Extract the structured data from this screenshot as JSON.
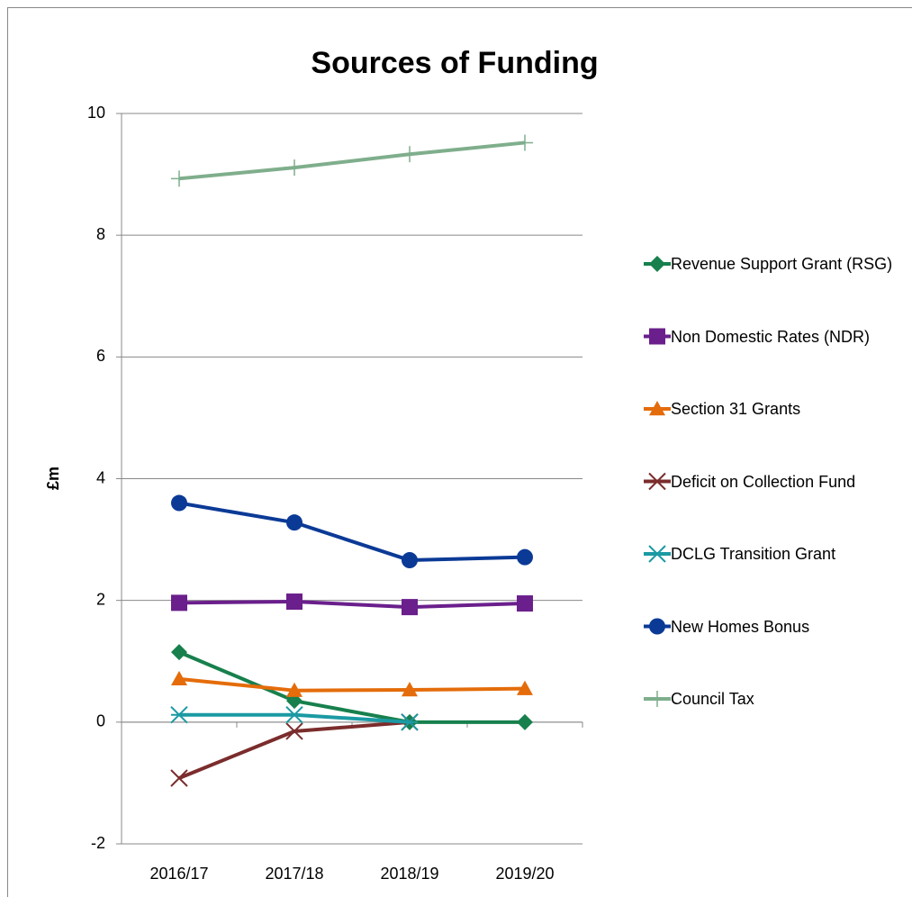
{
  "chart_data": {
    "type": "line",
    "title": "Sources of Funding",
    "y_label": "£m",
    "categories": [
      "2016/17",
      "2017/18",
      "2018/19",
      "2019/20"
    ],
    "series": [
      {
        "name": "Revenue Support Grant (RSG)",
        "color": "#17804d",
        "marker": "diamond",
        "values": [
          1.15,
          0.35,
          0,
          0
        ]
      },
      {
        "name": "Non Domestic Rates (NDR)",
        "color": "#6a1f8c",
        "marker": "square",
        "values": [
          1.96,
          1.98,
          1.89,
          1.95
        ]
      },
      {
        "name": "Section 31 Grants",
        "color": "#e46c0a",
        "marker": "triangle",
        "values": [
          0.71,
          0.52,
          0.53,
          0.55
        ]
      },
      {
        "name": "Deficit on Collection Fund",
        "color": "#7b2c2c",
        "marker": "x",
        "values": [
          -0.92,
          -0.15,
          0,
          null
        ]
      },
      {
        "name": "DCLG Transition Grant",
        "color": "#1b9aa3",
        "marker": "star",
        "values": [
          0.12,
          0.12,
          0,
          null
        ]
      },
      {
        "name": "New Homes Bonus",
        "color": "#0b3a96",
        "marker": "circle",
        "values": [
          3.6,
          3.28,
          2.66,
          2.71
        ]
      },
      {
        "name": "Council Tax",
        "color": "#7fae8c",
        "marker": "plus",
        "values": [
          8.93,
          9.11,
          9.33,
          9.52
        ]
      }
    ],
    "ylim": [
      -2,
      10
    ],
    "yticks": [
      -2,
      0,
      2,
      4,
      6,
      8,
      10
    ],
    "grid": true,
    "legend": "right"
  }
}
